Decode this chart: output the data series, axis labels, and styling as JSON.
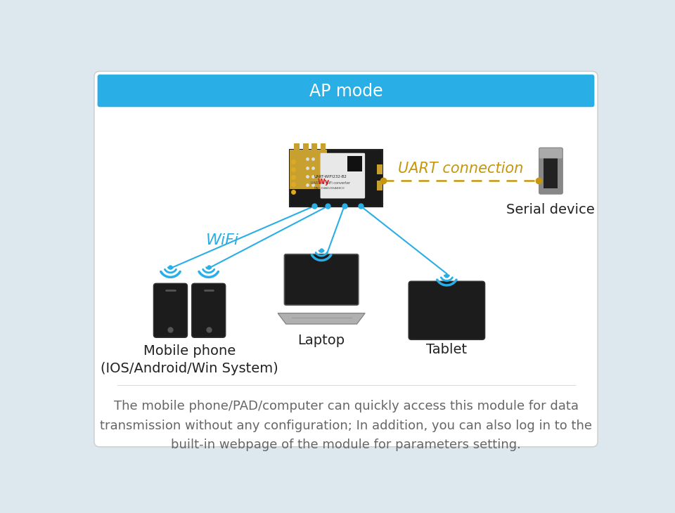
{
  "title": "AP mode",
  "title_bg_color": "#29aee6",
  "title_text_color": "#ffffff",
  "outer_bg_color": "#dce8ee",
  "inner_bg_color": "#ffffff",
  "wifi_label": "WiFi",
  "wifi_label_color": "#29aee6",
  "uart_label": "UART connection",
  "uart_label_color": "#c8960a",
  "serial_device_label": "Serial device",
  "device_labels": [
    "Mobile phone\n(IOS/Android/Win System)",
    "Laptop",
    "Tablet"
  ],
  "description": "The mobile phone/PAD/computer can quickly access this module for data\ntransmission without any configuration; In addition, you can also log in to the\nbuilt-in webpage of the module for parameters setting.",
  "description_color": "#666666",
  "line_color_wifi": "#29aee6",
  "line_color_uart": "#c8960a",
  "title_fontsize": 17,
  "label_fontsize": 14,
  "desc_fontsize": 13
}
